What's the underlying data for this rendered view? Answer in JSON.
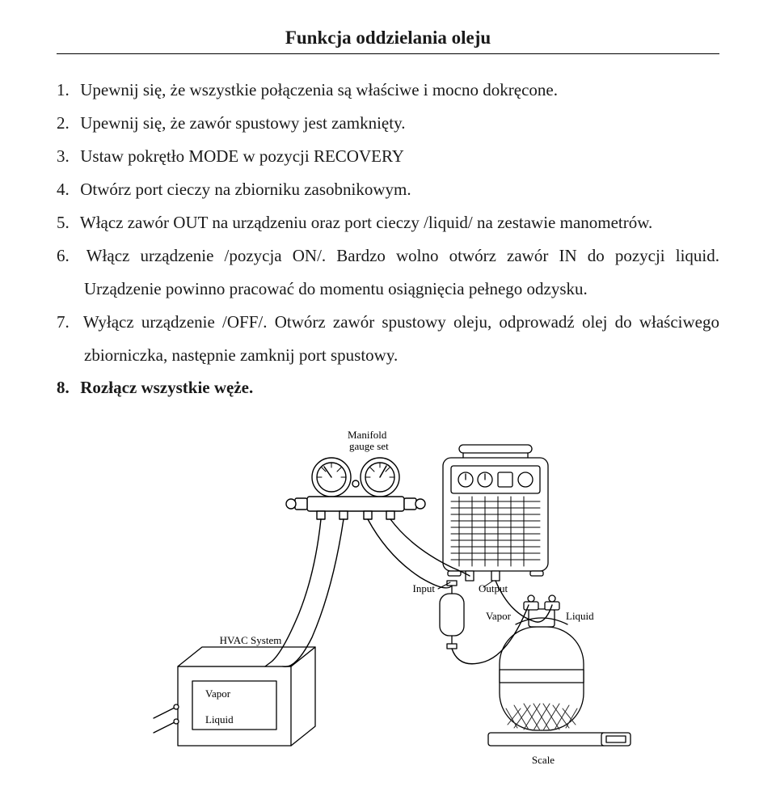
{
  "title": "Funkcja oddzielania oleju",
  "steps": [
    {
      "n": "1.",
      "t": "Upewnij się, że wszystkie połączenia są właściwe i mocno dokręcone.",
      "bold": false
    },
    {
      "n": "2.",
      "t": "Upewnij się, że zawór spustowy jest zamknięty.",
      "bold": false
    },
    {
      "n": "3.",
      "t": "Ustaw pokrętło MODE w pozycji RECOVERY",
      "bold": false
    },
    {
      "n": "4.",
      "t": "Otwórz port cieczy na zbiorniku zasobnikowym.",
      "bold": false
    },
    {
      "n": "5.",
      "t": "Włącz zawór OUT na urządzeniu oraz port cieczy /liquid/ na zestawie manometrów.",
      "bold": false
    },
    {
      "n": "6.",
      "t": "Włącz urządzenie /pozycja ON/. Bardzo wolno otwórz zawór IN do pozycji liquid. Urządzenie powinno pracować do momentu osiągnięcia pełnego odzysku.",
      "bold": false
    },
    {
      "n": "7.",
      "t": "Wyłącz urządzenie /OFF/. Otwórz zawór spustowy oleju, odprowadź olej do właściwego zbiorniczka, następnie zamknij port spustowy.",
      "bold": false
    },
    {
      "n": "8.",
      "t": "Rozłącz wszystkie węże.",
      "bold": true
    }
  ],
  "diagram": {
    "labels": {
      "manifold_l1": "Manifold",
      "manifold_l2": "gauge set",
      "input": "Input",
      "output": "Output",
      "vapor": "Vapor",
      "liquid": "Liquid",
      "hvac": "HVAC System",
      "vapor2": "Vapor",
      "liquid2": "Liquid",
      "scale": "Scale"
    },
    "colors": {
      "stroke": "#000000",
      "fill_bg": "#ffffff",
      "text": "#000000",
      "hatch": "#2a2a2a"
    },
    "fontsizes": {
      "label": 13
    }
  }
}
